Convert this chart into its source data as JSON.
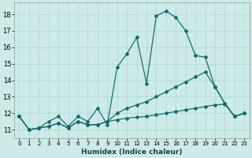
{
  "xlabel": "Humidex (Indice chaleur)",
  "xlim": [
    -0.5,
    23.5
  ],
  "ylim": [
    10.5,
    18.7
  ],
  "xticks": [
    0,
    1,
    2,
    3,
    4,
    5,
    6,
    7,
    8,
    9,
    10,
    11,
    12,
    13,
    14,
    15,
    16,
    17,
    18,
    19,
    20,
    21,
    22,
    23
  ],
  "yticks": [
    11,
    12,
    13,
    14,
    15,
    16,
    17,
    18
  ],
  "background_color": "#cceae7",
  "grid_color": "#aad8d4",
  "line_color": "#1a6b6b",
  "series": {
    "line1_x": [
      0,
      1,
      2,
      3,
      4,
      5,
      6,
      7,
      8,
      9,
      10,
      11,
      12,
      13,
      14,
      15,
      16,
      17,
      18,
      19,
      20,
      21,
      22,
      23
    ],
    "line1_y": [
      11.8,
      11.0,
      11.1,
      11.5,
      11.8,
      11.2,
      11.8,
      11.5,
      12.3,
      11.3,
      14.8,
      15.6,
      16.6,
      13.8,
      17.9,
      18.2,
      17.8,
      17.0,
      15.5,
      15.4,
      13.6,
      12.6,
      11.8,
      12.0
    ],
    "line2_x": [
      0,
      1,
      2,
      3,
      4,
      5,
      6,
      7,
      8,
      9,
      10,
      11,
      12,
      13,
      14,
      15,
      16,
      17,
      18,
      19,
      20,
      21,
      22,
      23
    ],
    "line2_y": [
      11.8,
      11.0,
      11.1,
      11.2,
      11.4,
      11.1,
      11.5,
      11.3,
      11.3,
      11.5,
      12.0,
      12.3,
      12.5,
      12.7,
      13.0,
      13.3,
      13.6,
      13.9,
      14.2,
      14.5,
      13.6,
      12.6,
      11.8,
      12.0
    ],
    "line3_x": [
      0,
      1,
      2,
      3,
      4,
      5,
      6,
      7,
      8,
      9,
      10,
      11,
      12,
      13,
      14,
      15,
      16,
      17,
      18,
      19,
      20,
      21,
      22,
      23
    ],
    "line3_y": [
      11.8,
      11.0,
      11.1,
      11.2,
      11.4,
      11.1,
      11.5,
      11.3,
      11.3,
      11.5,
      11.6,
      11.7,
      11.75,
      11.8,
      11.9,
      12.0,
      12.1,
      12.2,
      12.3,
      12.4,
      12.5,
      12.55,
      11.8,
      12.0
    ]
  }
}
